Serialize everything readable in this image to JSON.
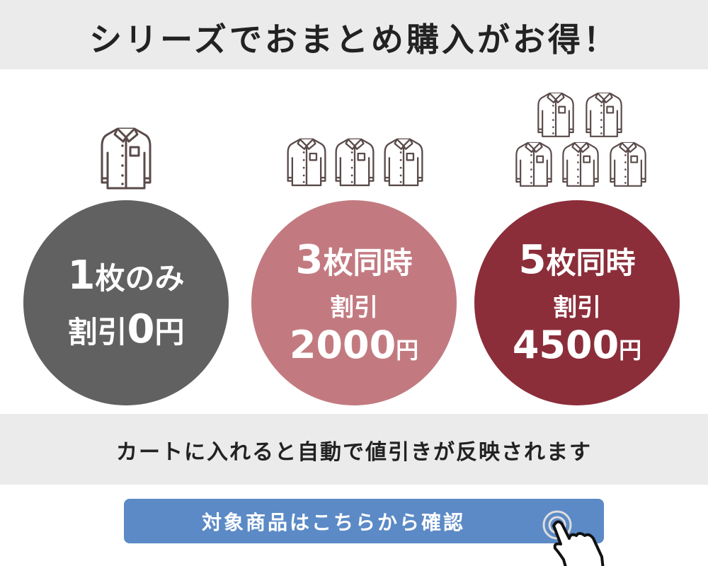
{
  "header": {
    "title": "シリーズでおまとめ購入がお得！"
  },
  "offers": [
    {
      "count": "1",
      "line1": "枚のみ",
      "line2": "割引",
      "amount": "0",
      "unit": "円",
      "color": "#616161"
    },
    {
      "count": "3",
      "line1": "枚同時",
      "line2": "割引",
      "amount": "2000",
      "unit": "円",
      "color": "#c27a80"
    },
    {
      "count": "5",
      "line1": "枚同時",
      "line2": "割引",
      "amount": "4500",
      "unit": "円",
      "color": "#8b2e3a"
    }
  ],
  "notice": "カートに入れると自動で値引きが反映されます",
  "cta": {
    "label": "対象商品はこちらから確認",
    "color": "#5b8ac6"
  }
}
